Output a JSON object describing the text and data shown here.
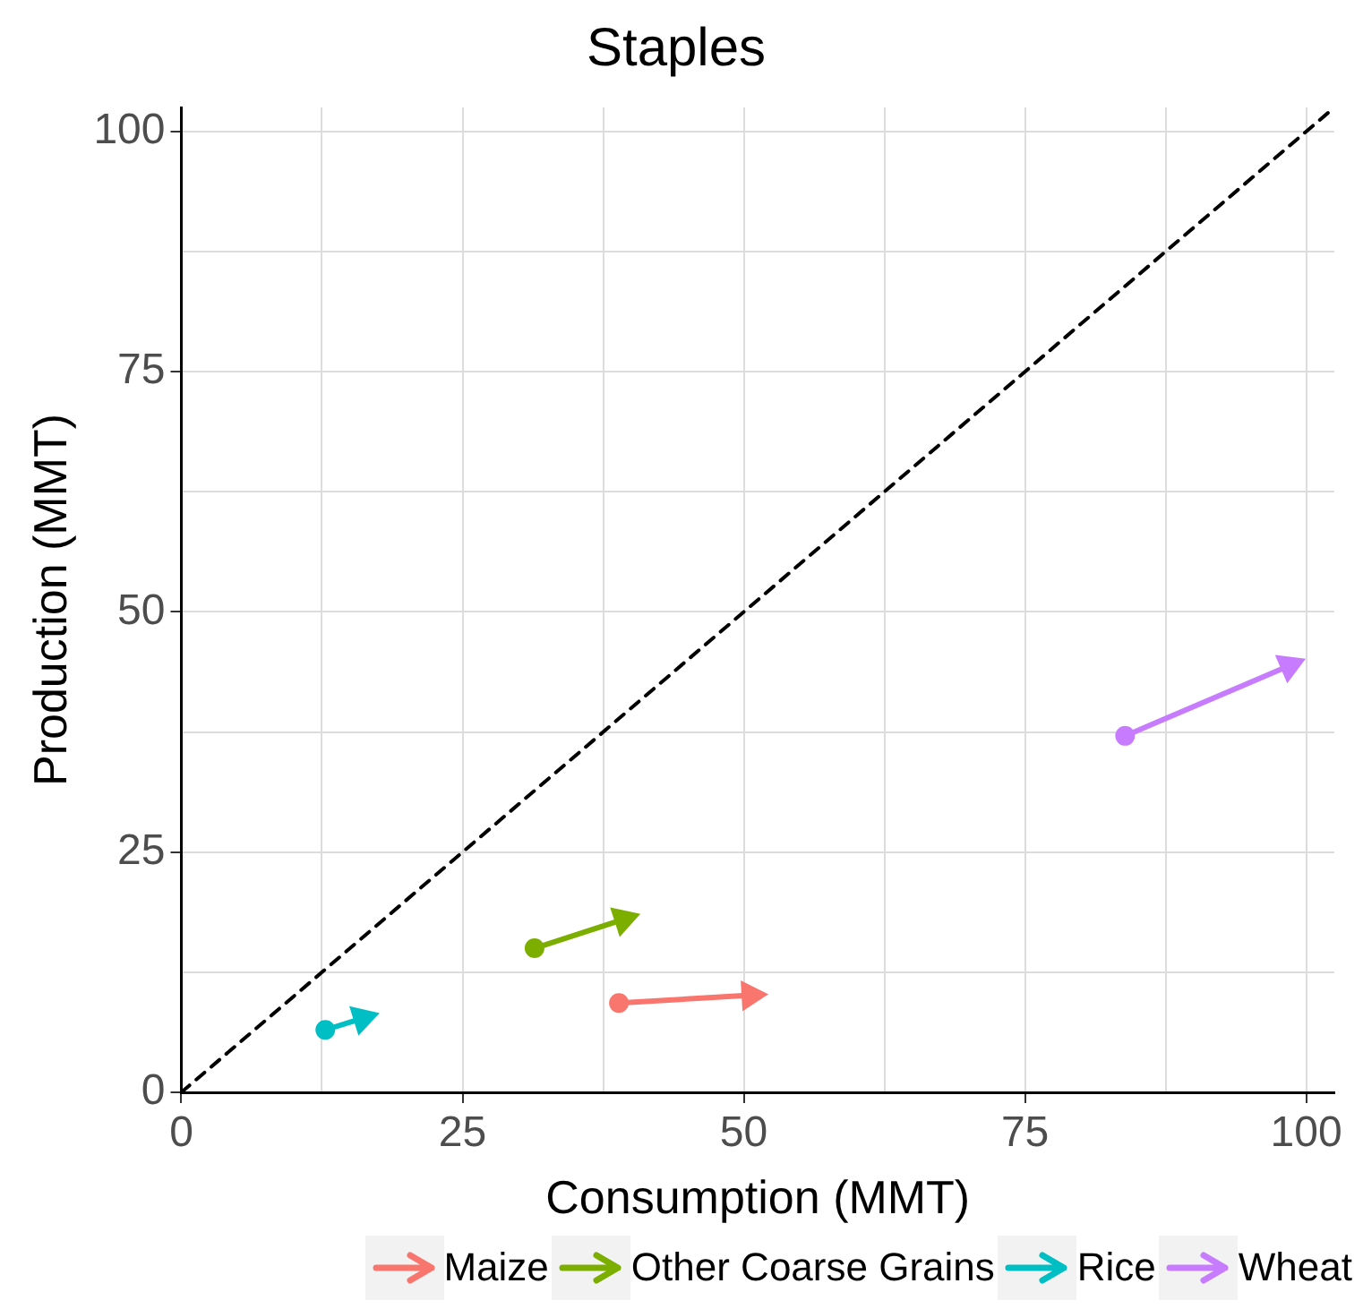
{
  "chart_data": {
    "type": "line",
    "title": "Staples",
    "xlabel": "Consumption (MMT)",
    "ylabel": "Production (MMT)",
    "xlim": [
      0,
      102.5
    ],
    "ylim": [
      0,
      102.5
    ],
    "xticks": [
      0,
      {
        "value": 12.5,
        "label": null
      },
      25,
      {
        "value": 37.5,
        "label": null
      },
      50,
      {
        "value": 62.5,
        "label": null
      },
      75,
      {
        "value": 87.5,
        "label": null
      },
      100
    ],
    "yticks": [
      0,
      {
        "value": 12.5,
        "label": null
      },
      25,
      {
        "value": 37.5,
        "label": null
      },
      50,
      {
        "value": 62.5,
        "label": null
      },
      75,
      {
        "value": 87.5,
        "label": null
      },
      100
    ],
    "grid": true,
    "legend": "bottom",
    "marker": "circle",
    "series": [
      {
        "name": "Maize",
        "color": "#f8766d",
        "x": [
          38.9,
          50.6
        ],
        "values": [
          9.3,
          10.1
        ]
      },
      {
        "name": "Other Coarse Grains",
        "color": "#7cae00",
        "x": [
          31.4,
          39.3
        ],
        "values": [
          15.0,
          18.0
        ]
      },
      {
        "name": "Rice",
        "color": "#00bfc4",
        "x": [
          12.8,
          16.1
        ],
        "values": [
          6.5,
          7.7
        ]
      },
      {
        "name": "Wheat",
        "color": "#c77cff",
        "x": [
          83.9,
          98.5
        ],
        "values": [
          37.1,
          44.4
        ]
      },
      {
        "color": "#000000",
        "x": [
          0,
          102.5
        ],
        "values": [
          0,
          102.5
        ],
        "line_style": "dashed",
        "marker": "none"
      }
    ]
  }
}
